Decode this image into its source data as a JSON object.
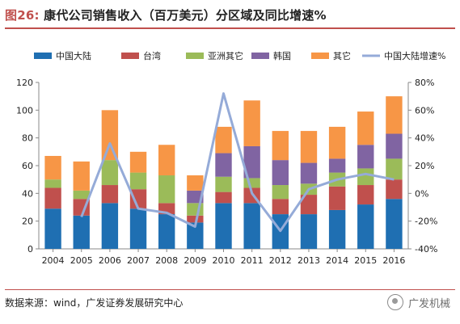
{
  "figure": {
    "label": "图26:",
    "title": "康代公司销售收入（百万美元）分区域及同比增速%"
  },
  "source": "数据来源：wind，广发证券发展研究中心",
  "watermark": "广发机械",
  "chart_data": {
    "type": "bar",
    "stacked": true,
    "categories": [
      "2004",
      "2005",
      "2006",
      "2007",
      "2008",
      "2009",
      "2010",
      "2011",
      "2012",
      "2013",
      "2014",
      "2015",
      "2016"
    ],
    "series": [
      {
        "name": "中国大陆",
        "color": "#1f6fb2",
        "values": [
          29,
          24,
          33,
          29,
          25,
          19,
          33,
          33,
          25,
          25,
          28,
          32,
          36
        ]
      },
      {
        "name": "台湾",
        "color": "#c0504d",
        "values": [
          15,
          12,
          13,
          14,
          8,
          5,
          8,
          11,
          11,
          14,
          17,
          14,
          14
        ]
      },
      {
        "name": "亚洲其它",
        "color": "#9bbb59",
        "values": [
          6,
          6,
          18,
          12,
          20,
          9,
          11,
          7,
          10,
          8,
          10,
          12,
          15
        ]
      },
      {
        "name": "韩国",
        "color": "#8064a2",
        "values": [
          0,
          0,
          0,
          0,
          0,
          9,
          17,
          23,
          18,
          15,
          10,
          17,
          18
        ]
      },
      {
        "name": "其它",
        "color": "#f79646",
        "values": [
          17,
          21,
          36,
          15,
          22,
          11,
          19,
          33,
          21,
          23,
          23,
          24,
          27
        ]
      }
    ],
    "line_series": {
      "name": "中国大陆增速%",
      "color": "#95abd8",
      "axis": "right",
      "values": [
        null,
        -17,
        36,
        -11,
        -14,
        -24,
        72,
        0,
        -27,
        3,
        10,
        14,
        10
      ]
    },
    "ylim": [
      0,
      120
    ],
    "yticks": [
      "0",
      "20",
      "40",
      "60",
      "80",
      "100",
      "120"
    ],
    "y2lim": [
      -40,
      80
    ],
    "y2ticks": [
      "-40%",
      "-20%",
      "0%",
      "20%",
      "40%",
      "60%",
      "80%"
    ],
    "legend_position": "top",
    "grid": false
  }
}
